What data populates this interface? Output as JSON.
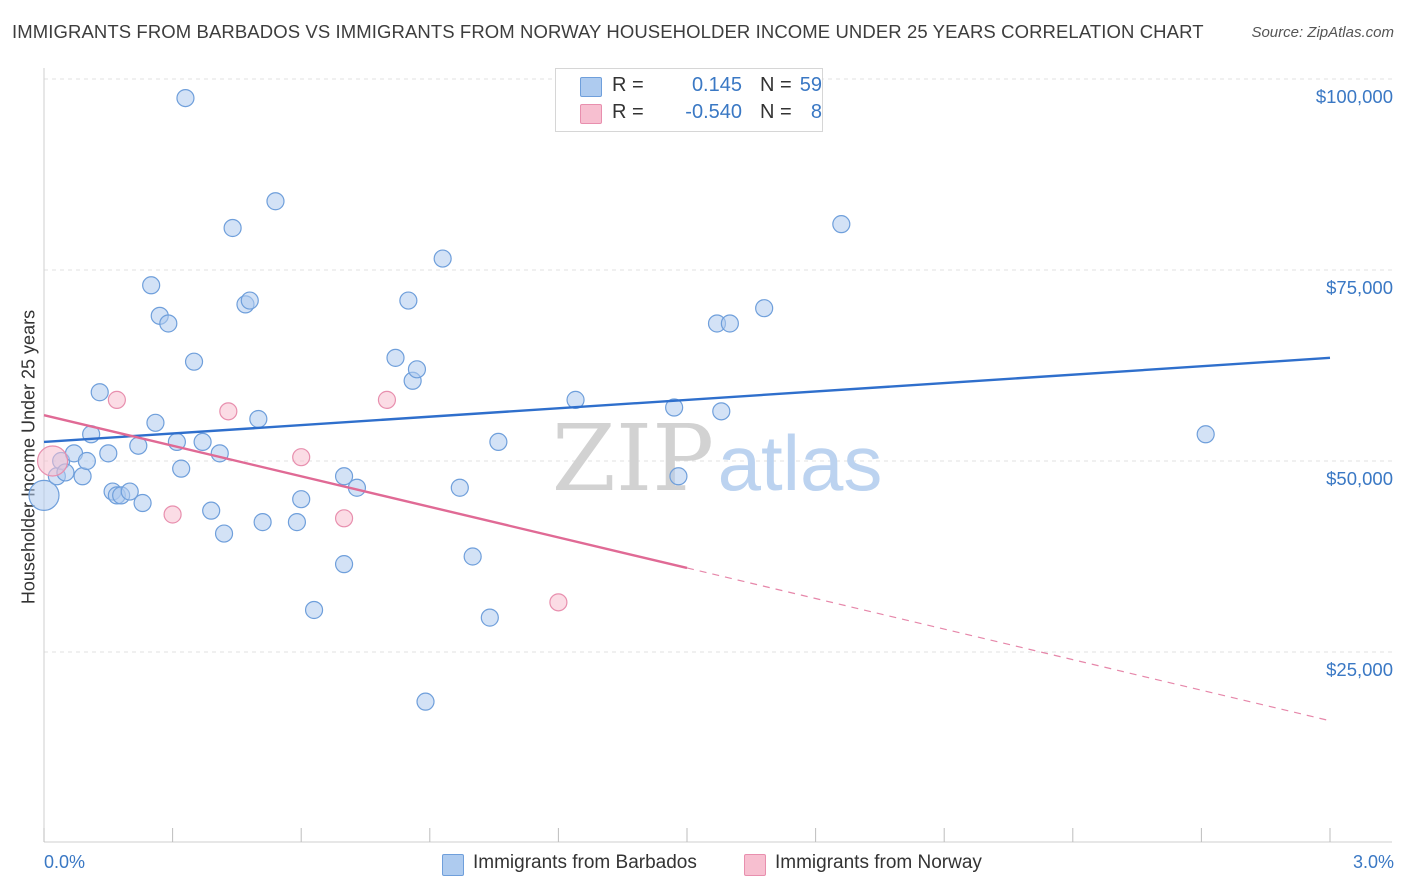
{
  "title": "IMMIGRANTS FROM BARBADOS VS IMMIGRANTS FROM NORWAY HOUSEHOLDER INCOME UNDER 25 YEARS CORRELATION CHART",
  "source": "Source: ZipAtlas.com",
  "watermark": {
    "zip": "ZIP",
    "atlas": "atlas"
  },
  "colors": {
    "barbados_fill": "#aecbef",
    "barbados_stroke": "#6f9fdb",
    "barbados_line": "#2f6fcc",
    "norway_fill": "#f7bfd0",
    "norway_stroke": "#e88fae",
    "norway_line": "#e06a95",
    "axis_text": "#3a78c4",
    "grid": "#e2e2e2"
  },
  "legend": {
    "rows": [
      {
        "series": "barbados",
        "r_label": "R =",
        "r_value": "0.145",
        "n_label": "N =",
        "n_value": "59"
      },
      {
        "series": "norway",
        "r_label": "R =",
        "r_value": "-0.540",
        "n_label": "N =",
        "n_value": "8"
      }
    ]
  },
  "chart_data": {
    "type": "scatter",
    "title": "IMMIGRANTS FROM BARBADOS VS IMMIGRANTS FROM NORWAY HOUSEHOLDER INCOME UNDER 25 YEARS CORRELATION CHART",
    "xlabel": "",
    "ylabel": "Householder Income Under 25 years",
    "xlim": [
      0.0,
      3.0
    ],
    "ylim": [
      0,
      105000
    ],
    "x_tick_labels": {
      "min": "0.0%",
      "max": "3.0%"
    },
    "y_ticks": [
      {
        "value": 25000,
        "label": "$25,000"
      },
      {
        "value": 50000,
        "label": "$50,000"
      },
      {
        "value": 75000,
        "label": "$75,000"
      },
      {
        "value": 100000,
        "label": "$100,000"
      }
    ],
    "series": [
      {
        "name": "Immigrants from Barbados",
        "key": "barbados",
        "points": [
          [
            0.0,
            45500,
            "large"
          ],
          [
            0.03,
            48000
          ],
          [
            0.04,
            50000
          ],
          [
            0.05,
            48500
          ],
          [
            0.07,
            51000
          ],
          [
            0.09,
            48000
          ],
          [
            0.1,
            50000
          ],
          [
            0.11,
            53500
          ],
          [
            0.13,
            59000
          ],
          [
            0.15,
            51000
          ],
          [
            0.16,
            46000
          ],
          [
            0.17,
            45500
          ],
          [
            0.18,
            45500
          ],
          [
            0.2,
            46000
          ],
          [
            0.22,
            52000
          ],
          [
            0.23,
            44500
          ],
          [
            0.25,
            73000
          ],
          [
            0.26,
            55000
          ],
          [
            0.27,
            69000
          ],
          [
            0.29,
            68000
          ],
          [
            0.31,
            52500
          ],
          [
            0.32,
            49000
          ],
          [
            0.35,
            63000
          ],
          [
            0.37,
            52500
          ],
          [
            0.39,
            43500
          ],
          [
            0.41,
            51000
          ],
          [
            0.42,
            40500
          ],
          [
            0.44,
            80500
          ],
          [
            0.47,
            70500
          ],
          [
            0.48,
            71000
          ],
          [
            0.5,
            55500
          ],
          [
            0.51,
            42000
          ],
          [
            0.54,
            84000
          ],
          [
            0.59,
            42000
          ],
          [
            0.6,
            45000
          ],
          [
            0.63,
            30500
          ],
          [
            0.7,
            48000
          ],
          [
            0.7,
            36500
          ],
          [
            0.73,
            46500
          ],
          [
            0.82,
            63500
          ],
          [
            0.85,
            71000
          ],
          [
            0.86,
            60500
          ],
          [
            0.87,
            62000
          ],
          [
            0.89,
            18500
          ],
          [
            0.93,
            76500
          ],
          [
            0.97,
            46500
          ],
          [
            1.0,
            37500
          ],
          [
            1.04,
            29500
          ],
          [
            1.06,
            52500
          ],
          [
            1.24,
            58000
          ],
          [
            1.47,
            57000
          ],
          [
            1.48,
            48000
          ],
          [
            1.57,
            68000
          ],
          [
            1.58,
            56500
          ],
          [
            1.6,
            68000
          ],
          [
            1.68,
            70000
          ],
          [
            1.86,
            81000
          ],
          [
            2.71,
            53500
          ],
          [
            0.33,
            97500
          ]
        ],
        "trend": {
          "x0": 0.0,
          "y0": 52500,
          "x1": 3.0,
          "y1": 63500
        }
      },
      {
        "name": "Immigrants from Norway",
        "key": "norway",
        "points": [
          [
            0.02,
            50000,
            "large"
          ],
          [
            0.17,
            58000
          ],
          [
            0.3,
            43000
          ],
          [
            0.43,
            56500
          ],
          [
            0.6,
            50500
          ],
          [
            0.7,
            42500
          ],
          [
            0.8,
            58000
          ],
          [
            1.2,
            31500
          ]
        ],
        "trend": {
          "x0": 0.0,
          "y0": 56000,
          "x1": 1.5,
          "y1": 36000,
          "dash_x1": 3.0,
          "dash_y1": 16000
        }
      }
    ]
  },
  "bottom_legend": [
    {
      "key": "barbados",
      "label": "Immigrants from Barbados"
    },
    {
      "key": "norway",
      "label": "Immigrants from Norway"
    }
  ]
}
